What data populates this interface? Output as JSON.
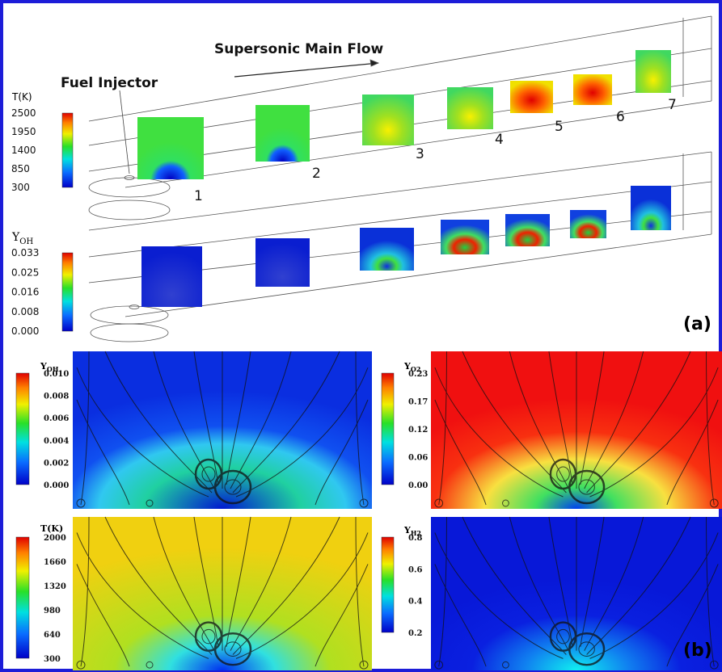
{
  "panel_a": {
    "label": "(a)",
    "flow_label": "Supersonic Main Flow",
    "injector_label": "Fuel Injector",
    "slice_labels": [
      "1",
      "2",
      "3",
      "4",
      "5",
      "6",
      "7"
    ],
    "temperature_colorbar": {
      "title": "T(K)",
      "ticks": [
        "2500",
        "1950",
        "1400",
        "850",
        "300"
      ]
    },
    "oh_colorbar": {
      "title": {
        "symbol": "Y",
        "subscript": "OH"
      },
      "ticks": [
        "0.033",
        "0.025",
        "0.016",
        "0.008",
        "0.000"
      ]
    }
  },
  "panel_b": {
    "label": "(b)",
    "plots": [
      {
        "colorbar_title": {
          "symbol": "Y",
          "subscript": "OH"
        },
        "ticks": [
          "0.010",
          "0.008",
          "0.006",
          "0.004",
          "0.002",
          "0.000"
        ]
      },
      {
        "colorbar_title": {
          "symbol": "Y",
          "subscript": "O2"
        },
        "ticks": [
          "0.23",
          "0.17",
          "0.12",
          "0.06",
          "0.00"
        ]
      },
      {
        "colorbar_title": {
          "symbol": "T(K)",
          "subscript": ""
        },
        "ticks": [
          "2000",
          "1660",
          "1320",
          "980",
          "640",
          "300"
        ]
      },
      {
        "colorbar_title": {
          "symbol": "Y",
          "subscript": "H2"
        },
        "ticks": [
          "0.8",
          "0.6",
          "0.4",
          "0.2"
        ]
      }
    ]
  }
}
